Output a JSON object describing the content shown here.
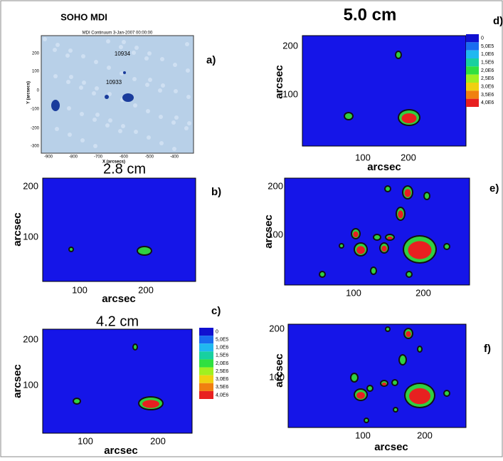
{
  "figure": {
    "panels": [
      {
        "label": "a)",
        "title": "SOHO MDI",
        "caption": "MDI Continuum 3-Jan-2007 00:00:00",
        "regions": [
          "10934",
          "10933"
        ],
        "y_label": "Y (arcsecs)",
        "x_label": "X (arcsecs)",
        "y_ticks": [
          200,
          100,
          0,
          -100,
          -200,
          -300
        ],
        "x_ticks": [
          -900,
          -800,
          -700,
          -600,
          -500,
          -400
        ]
      },
      {
        "label": "b)",
        "title": "2.8 cm",
        "y_label": "arcsec",
        "x_label": "arcsec",
        "y_ticks": [
          200,
          100
        ],
        "x_ticks": [
          100,
          200
        ]
      },
      {
        "label": "c)",
        "title": "4.2 cm",
        "y_label": "arcsec",
        "x_label": "arcsec",
        "y_ticks": [
          200,
          100
        ],
        "x_ticks": [
          100,
          200
        ],
        "legend": [
          "0",
          "5,0E5",
          "1,0E6",
          "1,5E6",
          "2,0E6",
          "2,5E6",
          "3,0E6",
          "3,5E6",
          "4,0E6"
        ]
      },
      {
        "label": "d)",
        "title": "5.0 cm",
        "y_label": "arcsec",
        "x_label": "arcsec",
        "y_ticks": [
          200,
          100
        ],
        "x_ticks": [
          100,
          200
        ],
        "legend": [
          "0",
          "5,0E5",
          "1,0E6",
          "1,5E6",
          "2,0E6",
          "2,5E6",
          "3,0E6",
          "3,5E6",
          "4,0E6"
        ]
      },
      {
        "label": "e)",
        "y_label": "arcsec",
        "y_ticks": [
          200,
          100
        ],
        "x_ticks": [
          100,
          200
        ]
      },
      {
        "label": "f)",
        "y_label": "arcsec",
        "x_label": "arcsec",
        "y_ticks": [
          200,
          100
        ],
        "x_ticks": [
          100,
          200
        ]
      }
    ]
  }
}
